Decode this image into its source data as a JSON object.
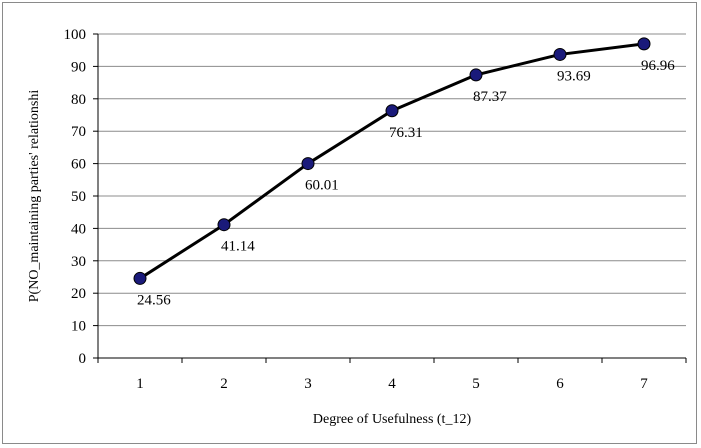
{
  "chart_data": {
    "type": "line",
    "title": "",
    "xlabel": "Degree of Usefulness (t_12)",
    "ylabel": "P(NO_maintaining parties' relationshi",
    "categories": [
      "1",
      "2",
      "3",
      "4",
      "5",
      "6",
      "7"
    ],
    "series": [
      {
        "values": [
          24.56,
          41.14,
          60.01,
          76.31,
          87.37,
          93.69,
          96.96
        ],
        "labels": [
          "24.56",
          "41.14",
          "60.01",
          "76.31",
          "87.37",
          "93.69",
          "96.96"
        ],
        "line_color": "#000000",
        "marker_color": "#1a1a7a"
      }
    ],
    "ylim": [
      0,
      100
    ],
    "yticks": [
      "0",
      "10",
      "20",
      "30",
      "40",
      "50",
      "60",
      "70",
      "80",
      "90",
      "100"
    ],
    "grid": true,
    "legend": "none"
  }
}
